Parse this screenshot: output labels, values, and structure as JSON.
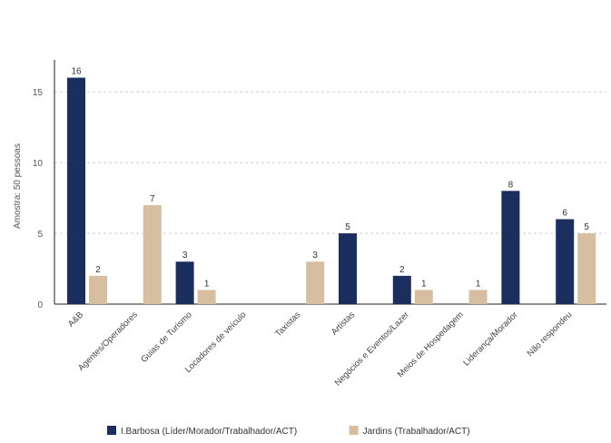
{
  "chart_data": {
    "type": "bar",
    "ylabel": "Amostra: 50 pessoas",
    "xlabel": "",
    "ylim": [
      0,
      17
    ],
    "yticks": [
      0,
      5,
      10,
      15
    ],
    "grid": "horizontal-dashed",
    "legend_position": "bottom",
    "categories": [
      "A&B",
      "Agentes/Operadores",
      "Guias de Turismo",
      "Locadores de veículo",
      "Taxistas",
      "Artistas",
      "Negócios e Eventos/Lazer",
      "Meios de Hospedagem",
      "Liderança/Morador",
      "Não respondeu"
    ],
    "series": [
      {
        "name": "I.Barbosa (Líder/Morador/Trabalhador/ACT)",
        "color": "#1b2f5e",
        "values": [
          16,
          null,
          3,
          null,
          null,
          5,
          2,
          null,
          8,
          6
        ],
        "labels": [
          "16",
          "",
          "3",
          "",
          "",
          "5",
          "2",
          "",
          "8",
          "6"
        ]
      },
      {
        "name": "Jardins (Trabalhador/ACT)",
        "color": "#d8bea1",
        "values": [
          2,
          7,
          1,
          null,
          3,
          null,
          1,
          1,
          null,
          5
        ],
        "labels": [
          "2",
          "7",
          "1",
          "",
          "3",
          "",
          "1",
          "1",
          "",
          "5"
        ]
      }
    ]
  }
}
